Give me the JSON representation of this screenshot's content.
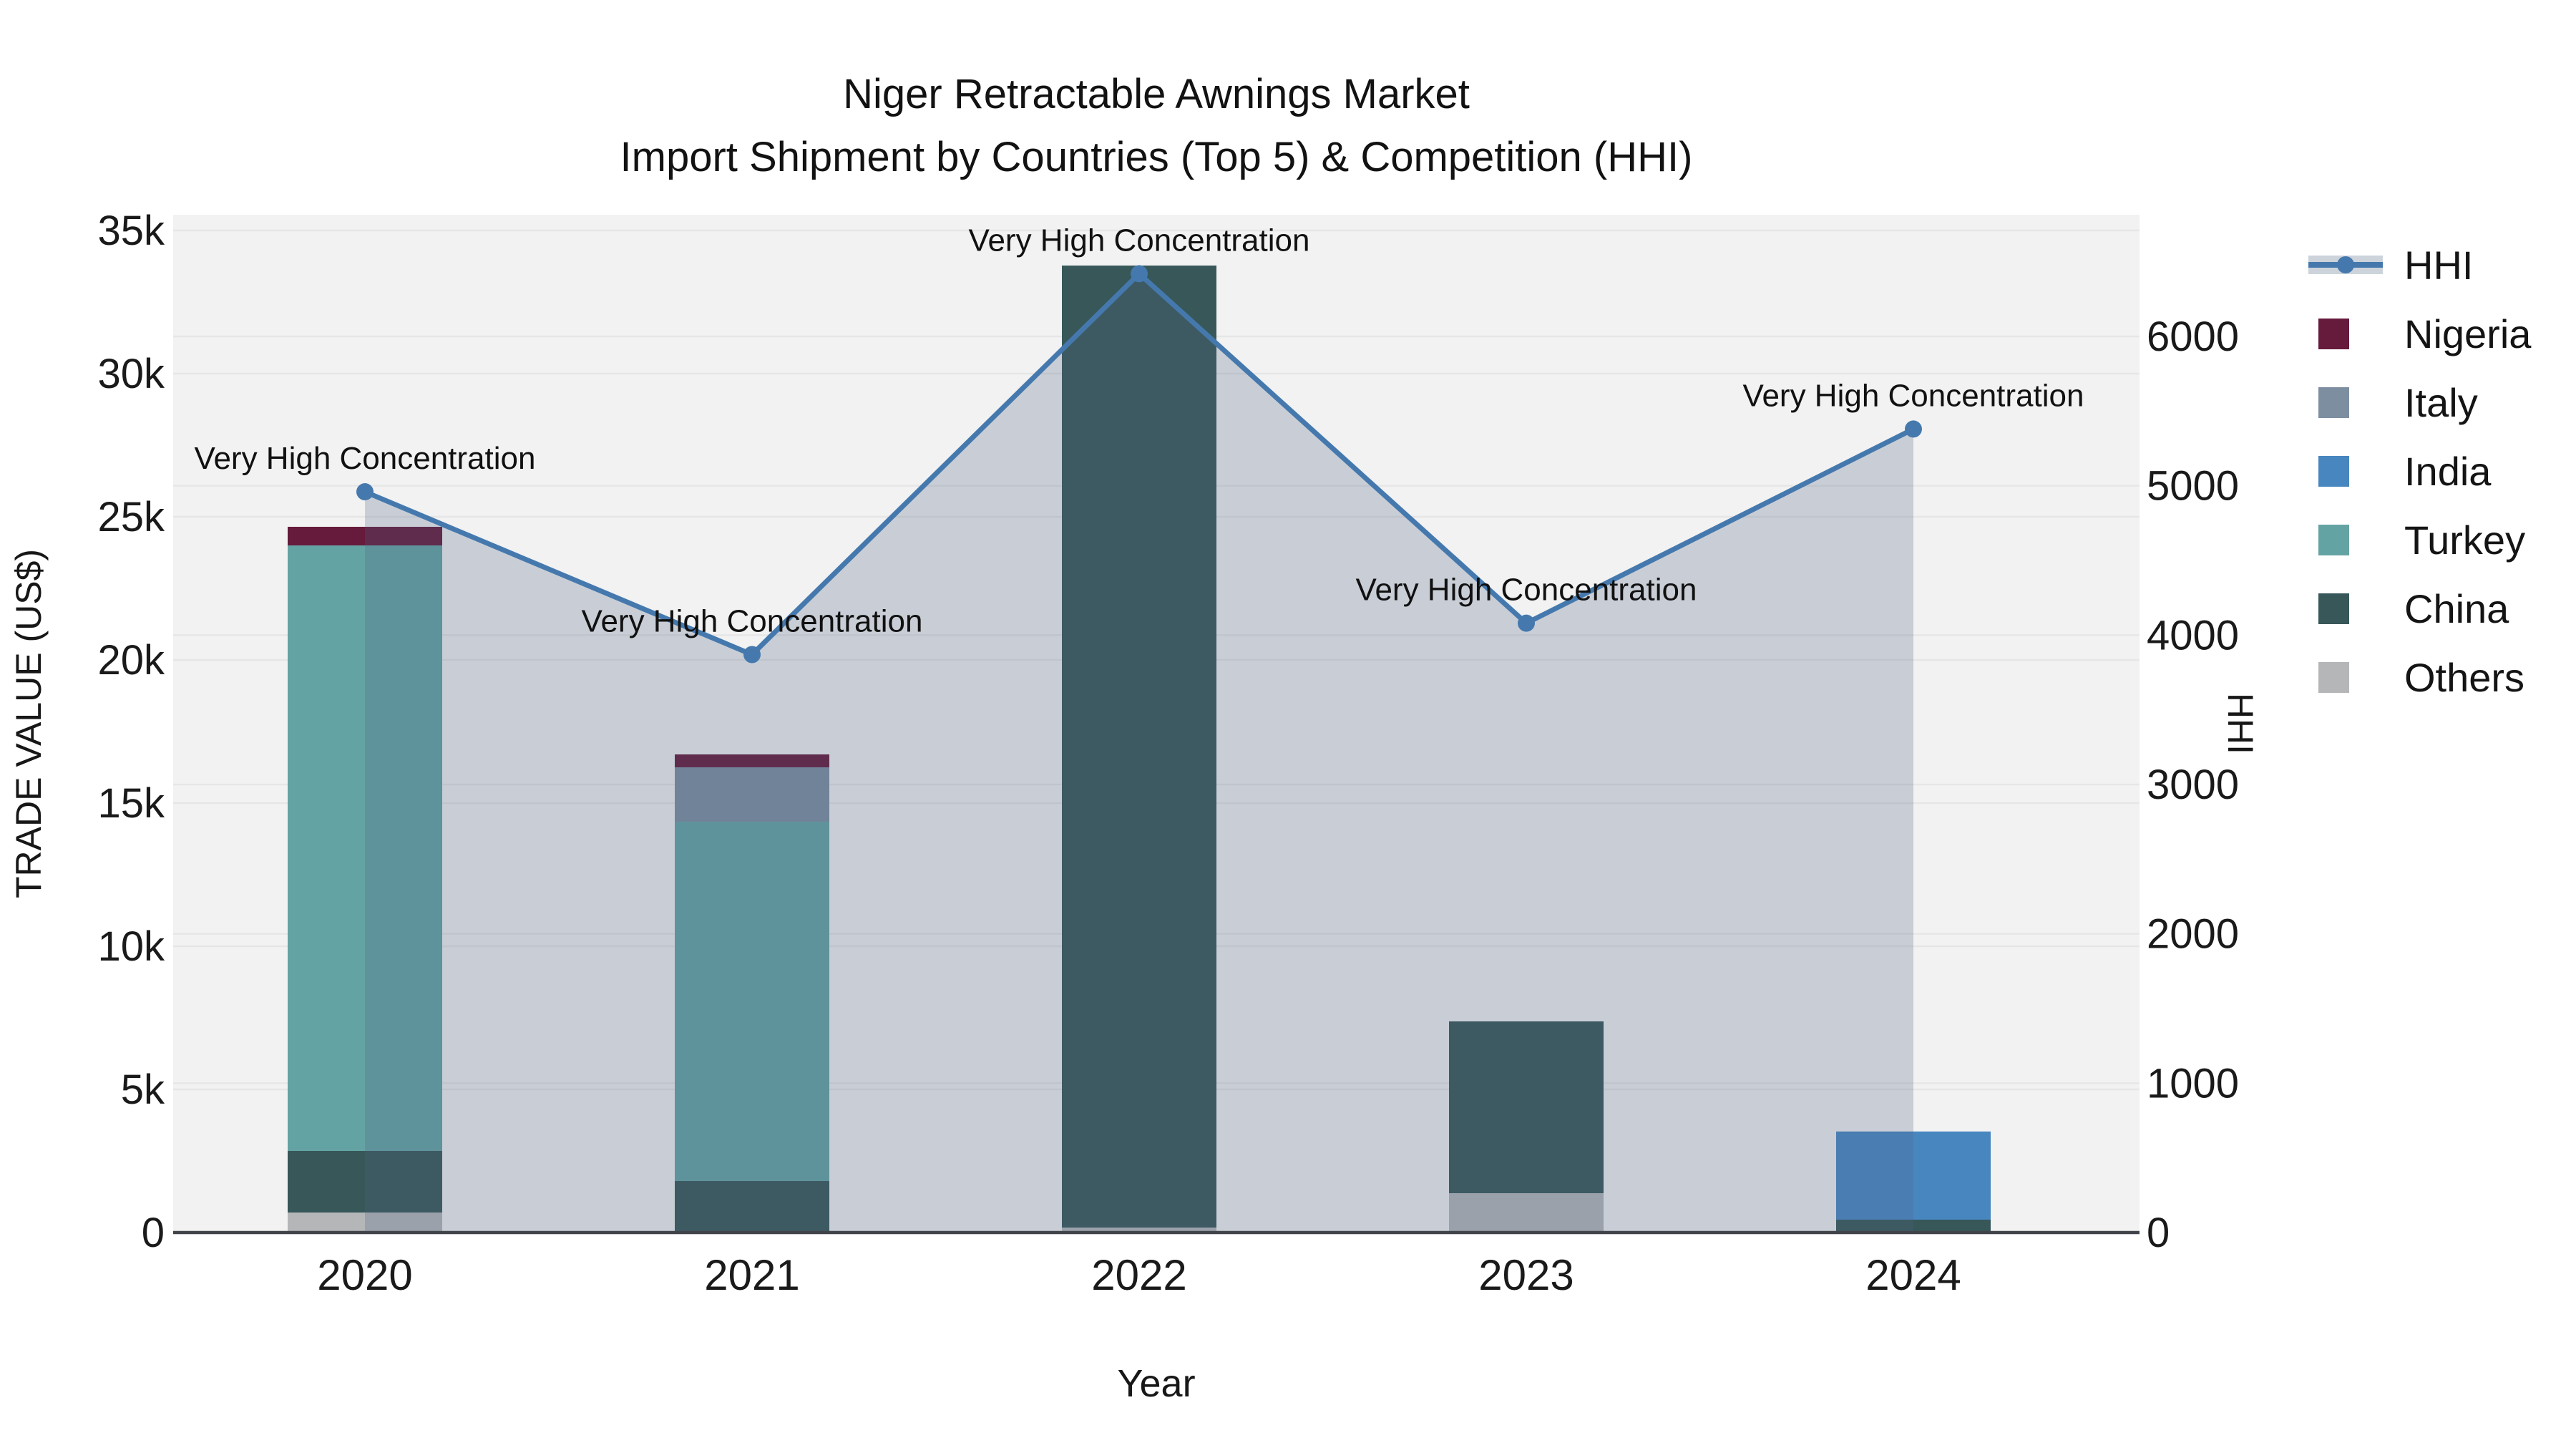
{
  "title": {
    "line1": "Niger Retractable Awnings Market",
    "line2": "Import Shipment by Countries (Top 5) & Competition (HHI)"
  },
  "axes": {
    "x_title": "Year",
    "y_left_title": "TRADE VALUE (US$)",
    "y_right_title": "HHI",
    "x_ticks": [
      "2020",
      "2021",
      "2022",
      "2023",
      "2024"
    ],
    "left_ticks": [
      {
        "label": "0",
        "value": 0
      },
      {
        "label": "5k",
        "value": 5000
      },
      {
        "label": "10k",
        "value": 10000
      },
      {
        "label": "15k",
        "value": 15000
      },
      {
        "label": "20k",
        "value": 20000
      },
      {
        "label": "25k",
        "value": 25000
      },
      {
        "label": "30k",
        "value": 30000
      },
      {
        "label": "35k",
        "value": 35000
      }
    ],
    "right_ticks": [
      {
        "label": "0",
        "value": 0
      },
      {
        "label": "1000",
        "value": 1000
      },
      {
        "label": "2000",
        "value": 2000
      },
      {
        "label": "3000",
        "value": 3000
      },
      {
        "label": "4000",
        "value": 4000
      },
      {
        "label": "5000",
        "value": 5000
      },
      {
        "label": "6000",
        "value": 6000
      }
    ]
  },
  "legend": {
    "items": [
      {
        "label": "HHI",
        "type": "line",
        "color": "#4579ae",
        "band_color": "#ccd3db"
      },
      {
        "label": "Nigeria",
        "type": "swatch",
        "color": "#661a3c"
      },
      {
        "label": "Italy",
        "type": "swatch",
        "color": "#7d8ea0"
      },
      {
        "label": "India",
        "type": "swatch",
        "color": "#4886c0"
      },
      {
        "label": "Turkey",
        "type": "swatch",
        "color": "#64a3a3"
      },
      {
        "label": "China",
        "type": "swatch",
        "color": "#375759"
      },
      {
        "label": "Others",
        "type": "swatch",
        "color": "#b4b6b8"
      }
    ]
  },
  "chart_data": {
    "type": "bar+line",
    "title": "Niger Retractable Awnings Market — Import Shipment by Countries (Top 5) & Competition (HHI)",
    "categories": [
      "2020",
      "2021",
      "2022",
      "2023",
      "2024"
    ],
    "xlabel": "Year",
    "ylabel_left": "TRADE VALUE (US$)",
    "ylabel_right": "HHI",
    "grid": true,
    "legend_position": "right",
    "plot_bg_color": "#f2f2f2",
    "grid_color": "#e6e6e6",
    "axis_line_color": "#40444a",
    "bar_unit": "US$",
    "stack_order_bottom_to_top": [
      "Others",
      "China",
      "Turkey",
      "India",
      "Italy",
      "Nigeria"
    ],
    "series": [
      {
        "name": "Nigeria",
        "color": "#661a3c",
        "values": [
          650,
          450,
          0,
          0,
          0
        ]
      },
      {
        "name": "Italy",
        "color": "#7d8ea0",
        "values": [
          0,
          1900,
          0,
          0,
          0
        ]
      },
      {
        "name": "India",
        "color": "#4886c0",
        "values": [
          0,
          0,
          0,
          0,
          3080
        ]
      },
      {
        "name": "Turkey",
        "color": "#64a3a3",
        "values": [
          21150,
          12550,
          0,
          0,
          0
        ]
      },
      {
        "name": "China",
        "color": "#375759",
        "values": [
          2150,
          1800,
          33600,
          6000,
          450
        ]
      },
      {
        "name": "Others",
        "color": "#b4b6b8",
        "values": [
          700,
          0,
          175,
          1375,
          0
        ]
      }
    ],
    "bar_totals": [
      24650,
      16700,
      33775,
      7375,
      3530
    ],
    "line_series": {
      "name": "HHI",
      "color": "#4579ae",
      "area_fill": "rgba(78,98,130,0.25)",
      "values": [
        4960,
        3870,
        6420,
        4080,
        5380
      ]
    },
    "annotations": [
      {
        "text": "Very High Concentration",
        "category": "2020"
      },
      {
        "text": "Very High Concentration",
        "category": "2021"
      },
      {
        "text": "Very High Concentration",
        "category": "2022"
      },
      {
        "text": "Very High Concentration",
        "category": "2023"
      },
      {
        "text": "Very High Concentration",
        "category": "2024"
      }
    ],
    "ylim_left": [
      0,
      35550
    ],
    "ylim_right": [
      0,
      6815
    ]
  }
}
